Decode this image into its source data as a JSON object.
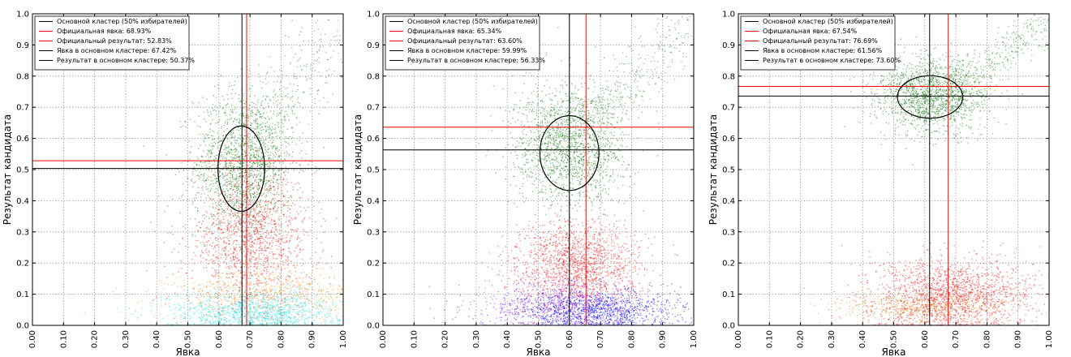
{
  "chart_data": [
    {
      "type": "scatter",
      "xlabel": "Явка",
      "ylabel": "Результат кандидата",
      "xlim": [
        0,
        1
      ],
      "ylim": [
        0,
        1
      ],
      "grid": true,
      "legend_position": "top-left",
      "x_ticks": [
        "0.00",
        "0.10",
        "0.20",
        "0.30",
        "0.40",
        "0.50",
        "0.60",
        "0.70",
        "0.80",
        "0.90",
        "1.00"
      ],
      "y_ticks": [
        "0.0",
        "0.1",
        "0.2",
        "0.3",
        "0.4",
        "0.5",
        "0.6",
        "0.7",
        "0.8",
        "0.9",
        "1.0"
      ],
      "legend": [
        {
          "label": "Основной кластер (50% избирателей)",
          "color": "#000000"
        },
        {
          "label": "Официальная явка: 68.93%",
          "color": "#ff0000"
        },
        {
          "label": "Официальный результат: 52.83%",
          "color": "#ff0000"
        },
        {
          "label": "Явка в основном кластере: 67.42%",
          "color": "#000000"
        },
        {
          "label": "Результат в основном кластере: 50.37%",
          "color": "#000000"
        }
      ],
      "official_turnout": 0.6893,
      "official_result": 0.5283,
      "cluster_turnout": 0.6742,
      "cluster_result": 0.5037,
      "cluster_ellipse": {
        "center": [
          0.672,
          0.503
        ],
        "semi_axis_x": 0.075,
        "semi_axis_y": 0.137
      },
      "clouds": [
        {
          "name": "green",
          "color": "#0a7a0a",
          "center": [
            0.68,
            0.52
          ],
          "spread": [
            0.08,
            0.12
          ],
          "count": 1700
        },
        {
          "name": "green-tail",
          "color": "#1d8a1d",
          "trend": [
            [
              0.7,
              0.55
            ],
            [
              1.0,
              0.98
            ]
          ],
          "width": 0.1,
          "count": 300
        },
        {
          "name": "red",
          "color": "#ff0000",
          "center": [
            0.7,
            0.28
          ],
          "spread": [
            0.1,
            0.11
          ],
          "count": 1400
        },
        {
          "name": "orange",
          "color": "#ff8c00",
          "center": [
            0.78,
            0.1
          ],
          "spread": [
            0.17,
            0.04
          ],
          "count": 700
        },
        {
          "name": "cyan",
          "color": "#00e5ee",
          "center": [
            0.72,
            0.045
          ],
          "spread": [
            0.14,
            0.035
          ],
          "count": 1200
        }
      ]
    },
    {
      "type": "scatter",
      "xlabel": "Явка",
      "ylabel": "Результат кандидата",
      "xlim": [
        0,
        1
      ],
      "ylim": [
        0,
        1
      ],
      "grid": true,
      "legend_position": "top-left",
      "x_ticks": [
        "0.00",
        "0.10",
        "0.20",
        "0.30",
        "0.40",
        "0.50",
        "0.60",
        "0.70",
        "0.80",
        "0.90",
        "1.00"
      ],
      "y_ticks": [
        "0.0",
        "0.1",
        "0.2",
        "0.3",
        "0.4",
        "0.5",
        "0.6",
        "0.7",
        "0.8",
        "0.9",
        "1.0"
      ],
      "legend": [
        {
          "label": "Основной кластер (50% избирателей)",
          "color": "#000000"
        },
        {
          "label": "Официальная явка: 65.34%",
          "color": "#ff0000"
        },
        {
          "label": "Официальный результат: 63.60%",
          "color": "#ff0000"
        },
        {
          "label": "Явка в основном кластере: 59.99%",
          "color": "#000000"
        },
        {
          "label": "Результат в основном кластере: 56.33%",
          "color": "#000000"
        }
      ],
      "official_turnout": 0.6534,
      "official_result": 0.636,
      "cluster_turnout": 0.5999,
      "cluster_result": 0.5633,
      "cluster_ellipse": {
        "center": [
          0.6,
          0.553
        ],
        "semi_axis_x": 0.095,
        "semi_axis_y": 0.12
      },
      "clouds": [
        {
          "name": "green",
          "color": "#0a7a0a",
          "center": [
            0.6,
            0.58
          ],
          "spread": [
            0.09,
            0.1
          ],
          "count": 1700
        },
        {
          "name": "green-tail",
          "color": "#1d8a1d",
          "trend": [
            [
              0.62,
              0.62
            ],
            [
              1.0,
              0.98
            ]
          ],
          "width": 0.09,
          "count": 350
        },
        {
          "name": "red",
          "color": "#ff0000",
          "center": [
            0.62,
            0.2
          ],
          "spread": [
            0.1,
            0.07
          ],
          "count": 1500
        },
        {
          "name": "purple",
          "color": "#a000ff",
          "center": [
            0.55,
            0.07
          ],
          "spread": [
            0.13,
            0.04
          ],
          "count": 600
        },
        {
          "name": "blue",
          "color": "#0000ff",
          "center": [
            0.68,
            0.05
          ],
          "spread": [
            0.13,
            0.035
          ],
          "count": 1300
        }
      ]
    },
    {
      "type": "scatter",
      "xlabel": "Явка",
      "ylabel": "Результат кандидата",
      "xlim": [
        0,
        1
      ],
      "ylim": [
        0,
        1
      ],
      "grid": true,
      "legend_position": "top-left",
      "x_ticks": [
        "0.00",
        "0.10",
        "0.20",
        "0.30",
        "0.40",
        "0.50",
        "0.60",
        "0.70",
        "0.80",
        "0.90",
        "1.00"
      ],
      "y_ticks": [
        "0.0",
        "0.1",
        "0.2",
        "0.3",
        "0.4",
        "0.5",
        "0.6",
        "0.7",
        "0.8",
        "0.9",
        "1.0"
      ],
      "legend": [
        {
          "label": "Основной кластер (50% избирателей)",
          "color": "#000000"
        },
        {
          "label": "Официальная явка: 67.54%",
          "color": "#ff0000"
        },
        {
          "label": "Официальный результат: 76.69%",
          "color": "#ff0000"
        },
        {
          "label": "Явка в основном кластере: 61.56%",
          "color": "#000000"
        },
        {
          "label": "Результат в основном кластере: 73.60%",
          "color": "#000000"
        }
      ],
      "official_turnout": 0.6754,
      "official_result": 0.7669,
      "cluster_turnout": 0.6156,
      "cluster_result": 0.736,
      "cluster_ellipse": {
        "center": [
          0.617,
          0.733
        ],
        "semi_axis_x": 0.105,
        "semi_axis_y": 0.068
      },
      "clouds": [
        {
          "name": "green",
          "color": "#0a7a0a",
          "center": [
            0.62,
            0.74
          ],
          "spread": [
            0.09,
            0.06
          ],
          "count": 1600
        },
        {
          "name": "green-tail",
          "color": "#1d8a1d",
          "trend": [
            [
              0.7,
              0.76
            ],
            [
              1.0,
              0.98
            ]
          ],
          "width": 0.06,
          "count": 300
        },
        {
          "name": "red",
          "color": "#ff0000",
          "center": [
            0.68,
            0.1
          ],
          "spread": [
            0.13,
            0.06
          ],
          "count": 1700
        },
        {
          "name": "orange",
          "color": "#e08000",
          "center": [
            0.6,
            0.06
          ],
          "spread": [
            0.14,
            0.025
          ],
          "count": 500
        }
      ]
    }
  ]
}
